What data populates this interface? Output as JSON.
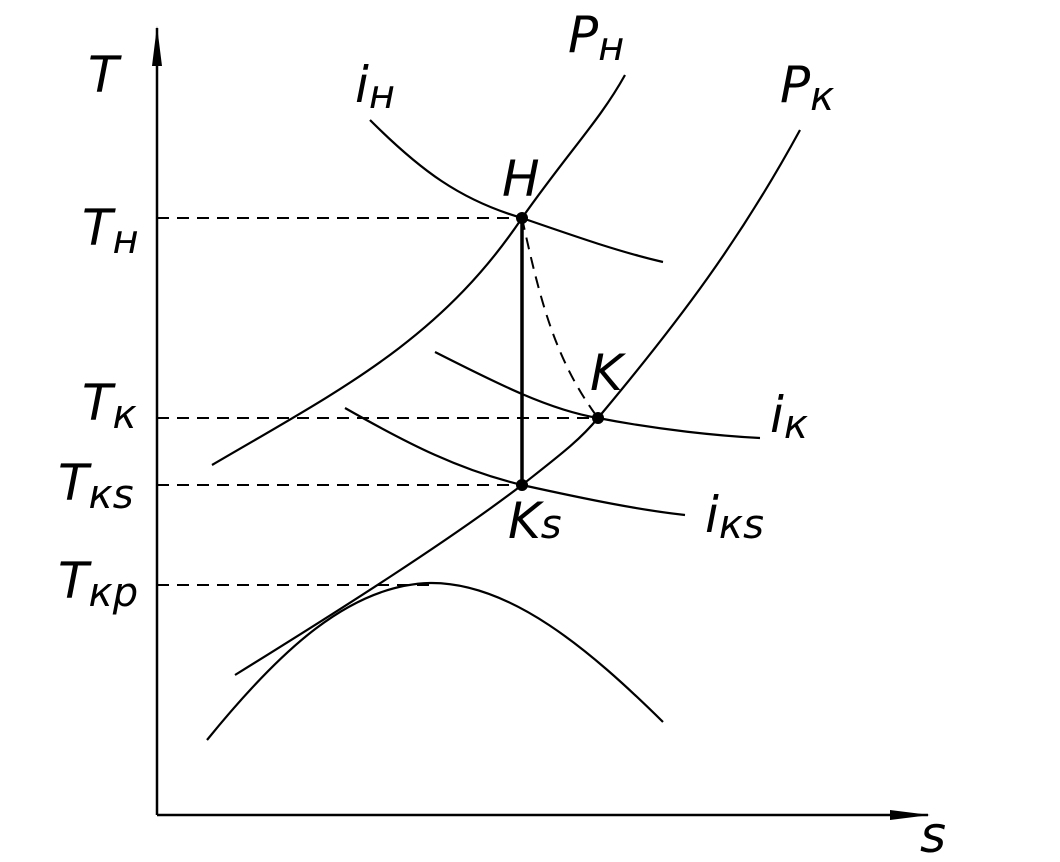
{
  "axes": {
    "y_label": "T",
    "x_label": "s"
  },
  "levels": [
    {
      "main": "T",
      "sub": "н"
    },
    {
      "main": "T",
      "sub": "к"
    },
    {
      "main": "T",
      "sub": "кs"
    },
    {
      "main": "T",
      "sub": "кр"
    }
  ],
  "isobars": [
    {
      "main": "P",
      "sub": "н"
    },
    {
      "main": "P",
      "sub": "к"
    }
  ],
  "enthalpies": [
    {
      "main": "i",
      "sub": "н"
    },
    {
      "main": "i",
      "sub": "к"
    },
    {
      "main": "i",
      "sub": "кs"
    }
  ],
  "points": [
    {
      "main": "H"
    },
    {
      "main": "K"
    },
    {
      "main": "K",
      "sub": "s"
    }
  ]
}
